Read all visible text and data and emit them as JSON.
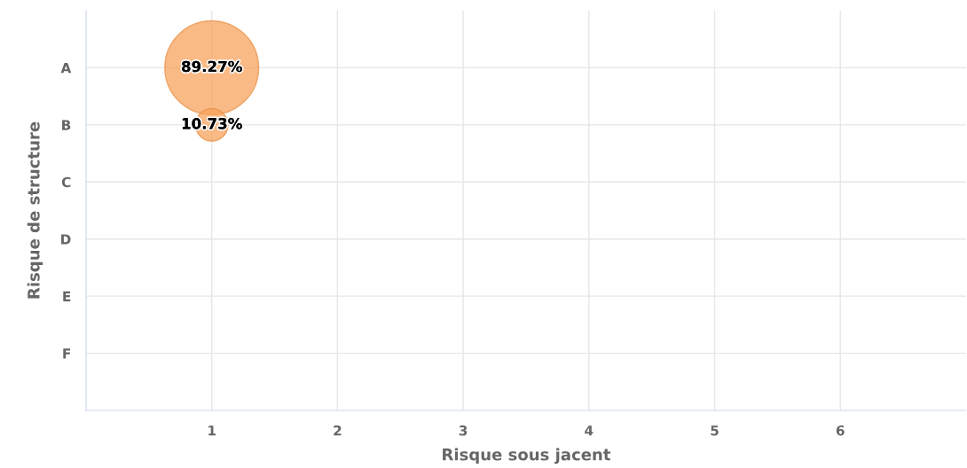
{
  "chart_data": {
    "type": "bubble",
    "orientation": "horizontal",
    "xlabel": "Risque sous jacent",
    "ylabel": "Risque de structure",
    "categories": [
      "A",
      "B",
      "C",
      "D",
      "E",
      "F"
    ],
    "xlim": [
      0,
      7
    ],
    "xticks": [
      1,
      2,
      3,
      4,
      5,
      6
    ],
    "series": [
      {
        "color": "#f7a35c",
        "values": [
          1,
          1,
          null,
          null,
          null,
          null
        ],
        "sizes": [
          89.27,
          10.73,
          null,
          null,
          null,
          null
        ],
        "value_labels": [
          "89.27%",
          "10.73%",
          null,
          null,
          null,
          null
        ]
      }
    ],
    "grid": true
  }
}
